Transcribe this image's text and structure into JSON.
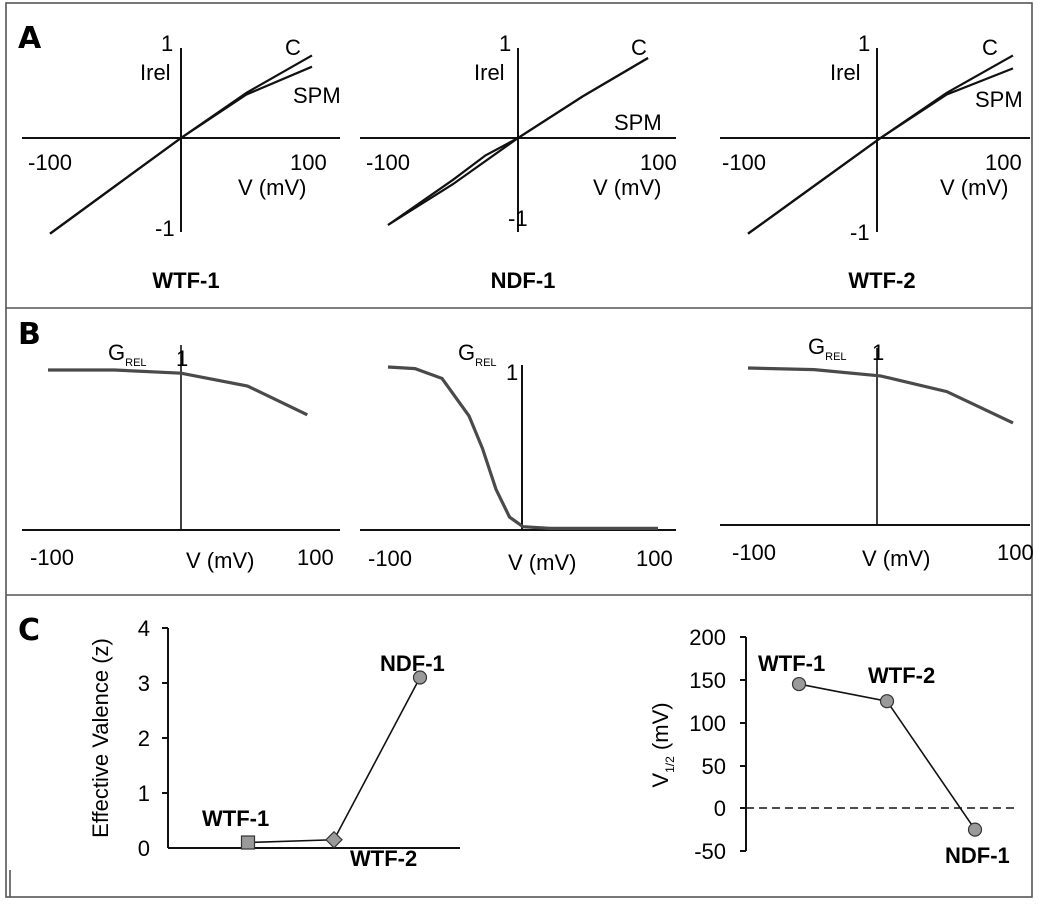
{
  "panels": [
    {
      "letter": "A"
    },
    {
      "letter": "B"
    },
    {
      "letter": "C"
    }
  ],
  "chart_data": [
    {
      "type": "line",
      "panel": "A",
      "title": "WTF-1",
      "xlabel": "V (mV)",
      "ylabel": "Irel",
      "xlim": [
        -100,
        100
      ],
      "ylim": [
        -1,
        1
      ],
      "x_ticks": [
        "-100",
        "100"
      ],
      "y_ticks": [
        "1",
        "-1"
      ],
      "series": [
        {
          "name": "C",
          "x": [
            -100,
            -50,
            0,
            50,
            100
          ],
          "y": [
            -1.1,
            -0.55,
            0,
            0.52,
            0.95
          ]
        },
        {
          "name": "SPM",
          "x": [
            -100,
            -50,
            0,
            50,
            100
          ],
          "y": [
            -1.1,
            -0.55,
            0,
            0.5,
            0.82
          ]
        }
      ]
    },
    {
      "type": "line",
      "panel": "A",
      "title": "NDF-1",
      "xlabel": "V (mV)",
      "ylabel": "Irel",
      "xlim": [
        -100,
        100
      ],
      "ylim": [
        -1,
        1
      ],
      "x_ticks": [
        "-100",
        "100"
      ],
      "y_ticks": [
        "1",
        "-1"
      ],
      "series": [
        {
          "name": "C",
          "x": [
            -100,
            -50,
            0,
            50,
            100
          ],
          "y": [
            -1.0,
            -0.53,
            0,
            0.48,
            0.92
          ]
        },
        {
          "name": "SPM",
          "x": [
            -100,
            -50,
            -25,
            0,
            50,
            100
          ],
          "y": [
            -1.0,
            -0.48,
            -0.2,
            0,
            0.48,
            0.92
          ]
        }
      ]
    },
    {
      "type": "line",
      "panel": "A",
      "title": "WTF-2",
      "xlabel": "V (mV)",
      "ylabel": "Irel",
      "xlim": [
        -100,
        100
      ],
      "ylim": [
        -1,
        1
      ],
      "x_ticks": [
        "-100",
        "100"
      ],
      "y_ticks": [
        "1",
        "-1"
      ],
      "series": [
        {
          "name": "C",
          "x": [
            -100,
            -50,
            0,
            50,
            100
          ],
          "y": [
            -1.1,
            -0.55,
            0,
            0.52,
            0.95
          ]
        },
        {
          "name": "SPM",
          "x": [
            -100,
            -50,
            0,
            50,
            100
          ],
          "y": [
            -1.1,
            -0.55,
            0,
            0.5,
            0.8
          ]
        }
      ]
    },
    {
      "type": "line",
      "panel": "B",
      "title": "",
      "xlabel": "V (mV)",
      "ylabel": "G",
      "ylabel_sub": "REL",
      "xlim": [
        -100,
        100
      ],
      "ylim": [
        0,
        1
      ],
      "x_ticks": [
        "-100",
        "100"
      ],
      "y_ticks": [
        "1"
      ],
      "series": [
        {
          "x": [
            -100,
            -50,
            0,
            50,
            95
          ],
          "y": [
            1.0,
            1.0,
            0.98,
            0.9,
            0.72
          ]
        }
      ]
    },
    {
      "type": "line",
      "panel": "B",
      "title": "",
      "xlabel": "V (mV)",
      "ylabel": "G",
      "ylabel_sub": "REL",
      "xlim": [
        -100,
        100
      ],
      "ylim": [
        0,
        1
      ],
      "x_ticks": [
        "-100",
        "100"
      ],
      "y_ticks": [
        "1"
      ],
      "series": [
        {
          "x": [
            -100,
            -80,
            -60,
            -40,
            -30,
            -20,
            -10,
            0,
            20,
            50,
            100
          ],
          "y": [
            1.0,
            0.99,
            0.93,
            0.7,
            0.5,
            0.25,
            0.08,
            0.02,
            0.01,
            0.01,
            0.01
          ]
        }
      ]
    },
    {
      "type": "line",
      "panel": "B",
      "title": "",
      "xlabel": "V (mV)",
      "ylabel": "G",
      "ylabel_sub": "REL",
      "xlim": [
        -100,
        100
      ],
      "ylim": [
        0,
        1
      ],
      "x_ticks": [
        "-100",
        "100"
      ],
      "y_ticks": [
        "1"
      ],
      "series": [
        {
          "x": [
            -100,
            -50,
            0,
            50,
            100
          ],
          "y": [
            1.0,
            0.99,
            0.95,
            0.85,
            0.65
          ]
        }
      ]
    },
    {
      "type": "scatter",
      "panel": "C",
      "title": "",
      "xlabel": "",
      "ylabel": "Effective Valence (z)",
      "ylim": [
        0,
        4
      ],
      "y_ticks": [
        "0",
        "1",
        "2",
        "3",
        "4"
      ],
      "points": [
        {
          "label": "WTF-1",
          "y": 0.1,
          "marker": "square"
        },
        {
          "label": "WTF-2",
          "y": 0.15,
          "marker": "diamond"
        },
        {
          "label": "NDF-1",
          "y": 3.1,
          "marker": "circle"
        }
      ]
    },
    {
      "type": "scatter",
      "panel": "C",
      "title": "",
      "xlabel": "",
      "ylabel": "V",
      "ylabel_sub": "1/2",
      "ylabel_unit": "(mV)",
      "ylim": [
        -50,
        200
      ],
      "y_ticks": [
        "200",
        "150",
        "100",
        "50",
        "0",
        "-50"
      ],
      "points": [
        {
          "label": "WTF-1",
          "y": 145,
          "marker": "circle"
        },
        {
          "label": "WTF-2",
          "y": 125,
          "marker": "circle"
        },
        {
          "label": "NDF-1",
          "y": -25,
          "marker": "circle"
        }
      ]
    }
  ]
}
